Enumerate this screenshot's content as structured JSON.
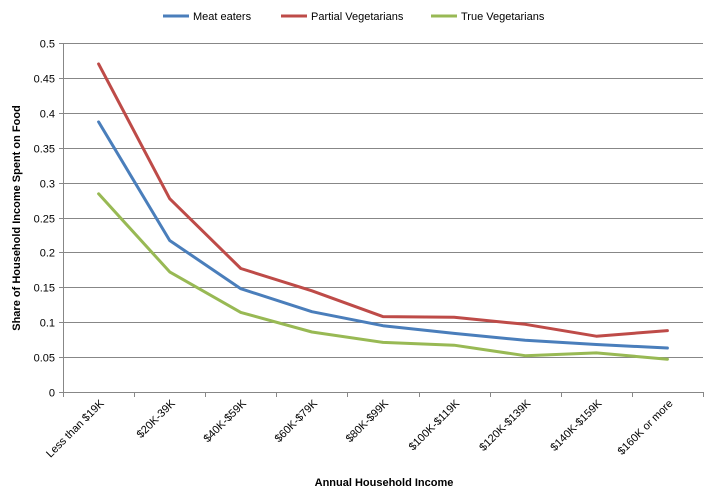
{
  "chart_data": {
    "type": "line",
    "xlabel": "Annual Household Income",
    "ylabel": "Share of Household Income Spent on Food",
    "categories": [
      "Less than $19K",
      "$20K-39K",
      "$40K-$59K",
      "$60K-$79K",
      "$80K-$99K",
      "$100K-$119K",
      "$120K-$139K",
      "$140K-$159K",
      "$160K or more"
    ],
    "ylim": [
      0,
      0.5
    ],
    "yticks": [
      "0",
      "0.05",
      "0.1",
      "0.15",
      "0.2",
      "0.25",
      "0.3",
      "0.35",
      "0.4",
      "0.45",
      "0.5"
    ],
    "grid": true,
    "legend_position": "top",
    "series": [
      {
        "name": "Meat eaters",
        "color": "#4a7ebb",
        "values": [
          0.387,
          0.217,
          0.148,
          0.115,
          0.095,
          0.084,
          0.074,
          0.068,
          0.063
        ]
      },
      {
        "name": "Partial Vegetarians",
        "color": "#be4b48",
        "values": [
          0.47,
          0.277,
          0.177,
          0.145,
          0.108,
          0.107,
          0.097,
          0.08,
          0.088
        ]
      },
      {
        "name": "True Vegetarians",
        "color": "#98b954",
        "values": [
          0.284,
          0.172,
          0.114,
          0.086,
          0.071,
          0.067,
          0.052,
          0.056,
          0.047
        ]
      }
    ]
  }
}
